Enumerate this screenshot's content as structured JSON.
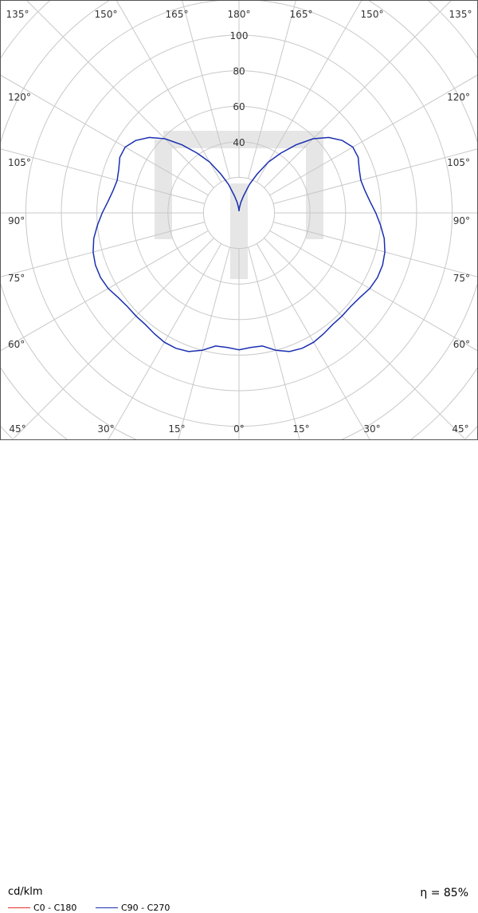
{
  "chart_data": {
    "type": "polar",
    "unit_label": "cd/klm",
    "efficiency_label": "η = 85%",
    "radial_ticks": [
      20,
      40,
      60,
      80,
      100
    ],
    "radial_tick_labels": [
      "40",
      "60",
      "80",
      "100"
    ],
    "radial_max": 100,
    "angle_labels": {
      "top": [
        "135°",
        "150°",
        "165°",
        "180°",
        "165°",
        "150°",
        "135°"
      ],
      "left": [
        "120°",
        "105°",
        "90°",
        "75°",
        "60°"
      ],
      "right": [
        "120°",
        "105°",
        "90°",
        "75°",
        "60°"
      ],
      "bottom": [
        "45°",
        "30°",
        "15°",
        "0°",
        "15°",
        "30°",
        "45°"
      ]
    },
    "series": [
      {
        "name": "C0 - C180",
        "color": "#e8302a",
        "visible": false,
        "angles": [],
        "values": []
      },
      {
        "name": "C90 - C270",
        "color": "#1a2fb0",
        "visible": true,
        "angles": [
          0,
          5,
          10,
          15,
          20,
          25,
          30,
          35,
          40,
          45,
          50,
          55,
          60,
          65,
          70,
          75,
          80,
          85,
          90,
          95,
          100,
          105,
          110,
          115,
          120,
          125,
          130,
          135,
          140,
          145,
          150,
          155,
          160,
          165,
          170,
          175,
          180
        ],
        "values": [
          77,
          76,
          76,
          80,
          83,
          84,
          84,
          83,
          82,
          82,
          82,
          83,
          85,
          86,
          86,
          85,
          83,
          80,
          77,
          74,
          72,
          71,
          72,
          74,
          74,
          71,
          66,
          59,
          50,
          41,
          33,
          24,
          17,
          10,
          6,
          3,
          1
        ]
      }
    ]
  }
}
